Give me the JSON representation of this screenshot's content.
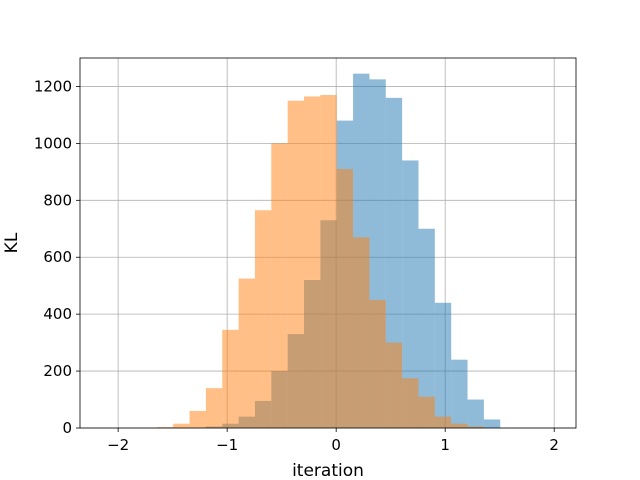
{
  "chart_data": {
    "type": "histogram",
    "title": "",
    "xlabel": "iteration",
    "ylabel": "KL",
    "xlim": [
      -2.35,
      2.2
    ],
    "ylim": [
      0,
      1300
    ],
    "xticks": [
      -2,
      -1,
      0,
      1,
      2
    ],
    "xtick_labels": [
      "−2",
      "−1",
      "0",
      "1",
      "2"
    ],
    "yticks": [
      0,
      200,
      400,
      600,
      800,
      1000,
      1200
    ],
    "ytick_labels": [
      "0",
      "200",
      "400",
      "600",
      "800",
      "1000",
      "1200"
    ],
    "grid": true,
    "legend": "none",
    "series": [
      {
        "color": "#1f77b4",
        "alpha": 0.5,
        "bin_edges": [
          -1.195,
          -1.045,
          -0.895,
          -0.745,
          -0.595,
          -0.445,
          -0.295,
          -0.145,
          0.005,
          0.155,
          0.305,
          0.455,
          0.605,
          0.755,
          0.905,
          1.055,
          1.205,
          1.355,
          1.505
        ],
        "counts": [
          5,
          15,
          40,
          95,
          200,
          330,
          520,
          730,
          1080,
          1245,
          1225,
          1160,
          940,
          700,
          440,
          240,
          100,
          30
        ]
      },
      {
        "color": "#ff7f0e",
        "alpha": 0.5,
        "bin_edges": [
          -1.645,
          -1.495,
          -1.345,
          -1.195,
          -1.045,
          -0.895,
          -0.745,
          -0.595,
          -0.445,
          -0.295,
          -0.145,
          0.005,
          0.155,
          0.305,
          0.455,
          0.605,
          0.755,
          0.905,
          1.055,
          1.205,
          1.355
        ],
        "counts": [
          3,
          15,
          60,
          140,
          345,
          525,
          765,
          1000,
          1150,
          1165,
          1170,
          910,
          670,
          450,
          300,
          175,
          110,
          40,
          15,
          5
        ]
      }
    ]
  }
}
